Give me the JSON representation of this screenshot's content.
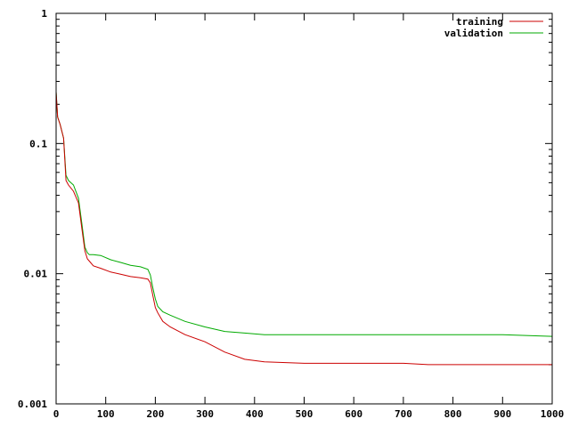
{
  "chart_data": {
    "type": "line",
    "title": "",
    "xlabel": "",
    "ylabel": "",
    "xlim": [
      0,
      1000
    ],
    "ylim": [
      0.001,
      1
    ],
    "yscale": "log",
    "grid": false,
    "legend_position": "top-right",
    "x_ticks": [
      0,
      100,
      200,
      300,
      400,
      500,
      600,
      700,
      800,
      900,
      1000
    ],
    "x_tick_labels": [
      "0",
      "100",
      "200",
      "300",
      "400",
      "500",
      "600",
      "700",
      "800",
      "900",
      "1000"
    ],
    "y_ticks": [
      0.001,
      0.01,
      0.1,
      1
    ],
    "y_tick_labels": [
      "0.001",
      "0.01",
      "0.1",
      "1"
    ],
    "series": [
      {
        "name": "training",
        "color": "#cc0000",
        "x": [
          0,
          3,
          8,
          15,
          20,
          25,
          35,
          45,
          52,
          58,
          63,
          67,
          75,
          90,
          110,
          130,
          150,
          170,
          185,
          190,
          195,
          200,
          205,
          215,
          230,
          260,
          300,
          340,
          380,
          420,
          500,
          600,
          700,
          750,
          800,
          900,
          1000
        ],
        "y": [
          0.25,
          0.16,
          0.14,
          0.11,
          0.052,
          0.048,
          0.043,
          0.035,
          0.022,
          0.015,
          0.013,
          0.0125,
          0.0115,
          0.011,
          0.0103,
          0.0099,
          0.0095,
          0.0093,
          0.0091,
          0.0085,
          0.0068,
          0.0055,
          0.005,
          0.0043,
          0.0039,
          0.0034,
          0.003,
          0.0025,
          0.0022,
          0.0021,
          0.00205,
          0.00205,
          0.00205,
          0.002,
          0.002,
          0.002,
          0.002
        ]
      },
      {
        "name": "validation",
        "color": "#00aa00",
        "x": [
          0,
          3,
          8,
          15,
          20,
          25,
          35,
          45,
          52,
          58,
          63,
          67,
          75,
          90,
          110,
          130,
          150,
          170,
          185,
          190,
          195,
          200,
          205,
          215,
          230,
          260,
          300,
          340,
          380,
          420,
          500,
          600,
          700,
          800,
          900,
          1000
        ],
        "y": [
          0.25,
          0.16,
          0.14,
          0.11,
          0.057,
          0.052,
          0.048,
          0.038,
          0.024,
          0.016,
          0.0145,
          0.014,
          0.014,
          0.0138,
          0.0128,
          0.0122,
          0.0116,
          0.0113,
          0.0108,
          0.0098,
          0.0078,
          0.0064,
          0.0056,
          0.0051,
          0.0048,
          0.0043,
          0.0039,
          0.0036,
          0.0035,
          0.0034,
          0.0034,
          0.0034,
          0.0034,
          0.0034,
          0.0034,
          0.0033
        ]
      }
    ]
  }
}
